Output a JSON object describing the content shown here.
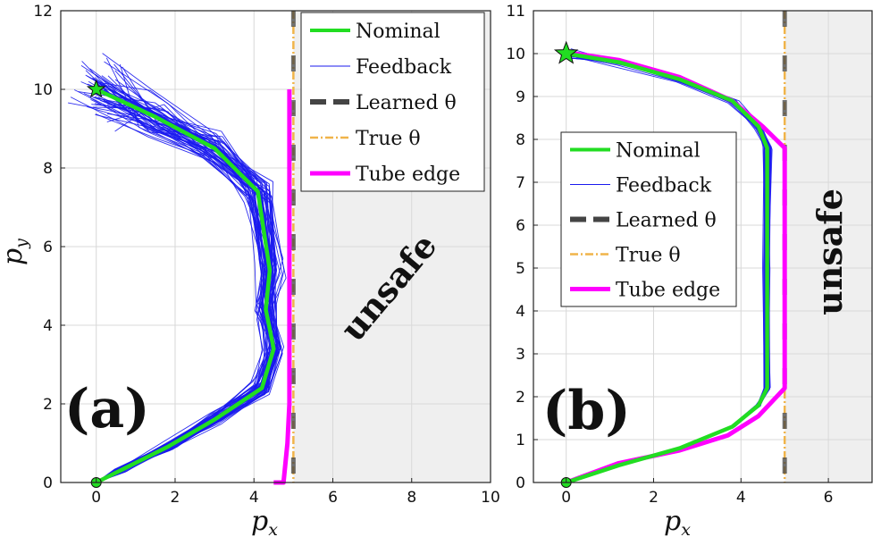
{
  "chart_data": [
    {
      "panel_label": "(a)",
      "type": "line",
      "xlabel": "p",
      "xlabel_sub": "x",
      "ylabel": "p",
      "ylabel_sub": "y",
      "xlim": [
        -0.9,
        10
      ],
      "ylim": [
        0,
        12
      ],
      "xticks": [
        "0",
        "2",
        "4",
        "6",
        "8",
        "10"
      ],
      "yticks": [
        "0",
        "2",
        "4",
        "6",
        "8",
        "10",
        "12"
      ],
      "grid": true,
      "legend_position": "top-right",
      "region_label": "unsafe",
      "unsafe_from_x": 5,
      "constraint_x": 5,
      "start": [
        0,
        0
      ],
      "goal": [
        0,
        10
      ],
      "feedback_count": 60,
      "feedback_spread": [
        0.25,
        0.8
      ],
      "series": [
        {
          "name": "Nominal",
          "x": [
            0,
            0.6,
            1.8,
            3.0,
            4.2,
            4.5,
            4.3,
            4.4,
            4.1,
            3.0,
            1.5,
            0
          ],
          "y": [
            0,
            0.3,
            0.9,
            1.6,
            2.4,
            3.4,
            4.4,
            5.4,
            7.4,
            8.5,
            9.3,
            10
          ]
        },
        {
          "name": "Feedback",
          "x": [
            0,
            0.6,
            1.8,
            3.0,
            4.2,
            4.5,
            4.3,
            4.4,
            4.1,
            3.0,
            1.5,
            0
          ],
          "y": [
            0,
            0.3,
            0.9,
            1.6,
            2.4,
            3.4,
            4.4,
            5.4,
            7.4,
            8.5,
            9.3,
            10
          ]
        },
        {
          "name": "Learned θ",
          "x": [
            5,
            5
          ],
          "y": [
            0,
            12
          ]
        },
        {
          "name": "True θ",
          "x": [
            5,
            5
          ],
          "y": [
            0,
            12
          ]
        },
        {
          "name": "Tube edge",
          "x": [
            4.5,
            4.75,
            4.85,
            4.9,
            4.9,
            4.9
          ],
          "y": [
            0,
            0,
            1.0,
            2.0,
            6.0,
            10.0
          ]
        }
      ],
      "legend": [
        {
          "name": "Nominal",
          "color": "#22dd22"
        },
        {
          "name": "Feedback",
          "color": "#1a1aee"
        },
        {
          "name": "Learned θ",
          "color": "#444444"
        },
        {
          "name": "True θ",
          "color": "#f0b44a"
        },
        {
          "name": "Tube edge",
          "color": "#ff00ff"
        }
      ]
    },
    {
      "panel_label": "(b)",
      "type": "line",
      "xlabel": "p",
      "xlabel_sub": "x",
      "ylabel": "",
      "xlim": [
        -0.75,
        7
      ],
      "ylim": [
        0,
        11
      ],
      "xticks": [
        "0",
        "2",
        "4",
        "6"
      ],
      "yticks": [
        "0",
        "1",
        "2",
        "3",
        "4",
        "5",
        "6",
        "7",
        "8",
        "9",
        "10",
        "11"
      ],
      "grid": true,
      "legend_position": "center-left",
      "region_label": "unsafe",
      "unsafe_from_x": 5,
      "constraint_x": 5,
      "start": [
        0,
        0
      ],
      "goal": [
        0,
        10
      ],
      "feedback_count": 40,
      "feedback_spread": [
        0.07,
        0.12
      ],
      "series": [
        {
          "name": "Nominal",
          "x": [
            0,
            1.2,
            2.6,
            3.8,
            4.4,
            4.6,
            4.6,
            4.6,
            4.4,
            3.8,
            2.6,
            1.2,
            0
          ],
          "y": [
            0,
            0.4,
            0.8,
            1.3,
            1.8,
            2.2,
            5.0,
            7.8,
            8.3,
            8.9,
            9.4,
            9.8,
            10
          ]
        },
        {
          "name": "Feedback",
          "x": [
            0,
            1.2,
            2.6,
            3.8,
            4.4,
            4.6,
            4.6,
            4.6,
            4.4,
            3.8,
            2.6,
            1.2,
            0
          ],
          "y": [
            0,
            0.4,
            0.8,
            1.3,
            1.8,
            2.2,
            5.0,
            7.8,
            8.3,
            8.9,
            9.4,
            9.8,
            10
          ]
        },
        {
          "name": "Learned θ",
          "x": [
            5,
            5
          ],
          "y": [
            0,
            11
          ]
        },
        {
          "name": "True θ",
          "x": [
            5,
            5
          ],
          "y": [
            0,
            11
          ]
        },
        {
          "name": "Tube edge",
          "x": [
            0,
            1.2,
            2.6,
            3.7,
            4.4,
            5.0,
            5.0,
            5.0,
            4.5,
            3.8,
            2.6,
            1.2,
            0.2
          ],
          "y": [
            0,
            0.45,
            0.75,
            1.1,
            1.55,
            2.2,
            5.0,
            7.8,
            8.3,
            8.9,
            9.45,
            9.85,
            10
          ]
        }
      ],
      "legend": [
        {
          "name": "Nominal",
          "color": "#22dd22"
        },
        {
          "name": "Feedback",
          "color": "#1a1aee"
        },
        {
          "name": "Learned θ",
          "color": "#444444"
        },
        {
          "name": "True θ",
          "color": "#f0b44a"
        },
        {
          "name": "Tube edge",
          "color": "#ff00ff"
        }
      ]
    }
  ]
}
